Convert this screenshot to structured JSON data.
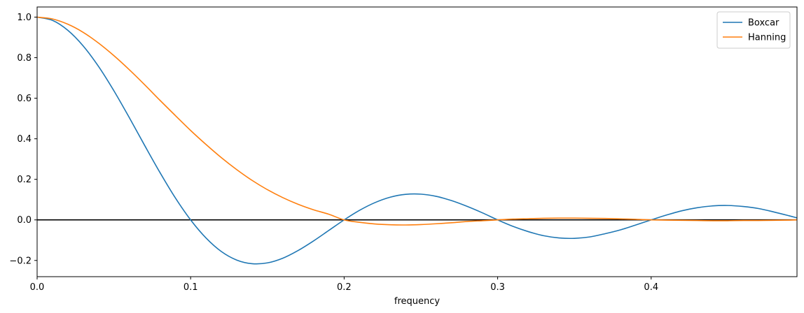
{
  "chart_data": {
    "type": "line",
    "title": "",
    "xlabel": "frequency",
    "ylabel": "",
    "xlim": [
      0,
      0.495
    ],
    "ylim": [
      -0.28,
      1.05
    ],
    "x_ticks": [
      0.0,
      0.1,
      0.2,
      0.3,
      0.4
    ],
    "x_tick_labels": [
      "0.0",
      "0.1",
      "0.2",
      "0.3",
      "0.4"
    ],
    "y_ticks": [
      -0.2,
      0.0,
      0.2,
      0.4,
      0.6,
      0.8,
      1.0
    ],
    "y_tick_labels": [
      "−0.2",
      "0.0",
      "0.2",
      "0.4",
      "0.6",
      "0.8",
      "1.0"
    ],
    "grid": false,
    "legend_position": "top-right",
    "reference_lines": [
      {
        "axis": "y",
        "value": 0,
        "color": "#000000"
      }
    ],
    "x": [
      0,
      0.01,
      0.02,
      0.03,
      0.04,
      0.05,
      0.06,
      0.07,
      0.08,
      0.09,
      0.1,
      0.11,
      0.12,
      0.13,
      0.14,
      0.15,
      0.16,
      0.17,
      0.18,
      0.19,
      0.2,
      0.21,
      0.22,
      0.23,
      0.24,
      0.25,
      0.26,
      0.27,
      0.28,
      0.29,
      0.3,
      0.31,
      0.32,
      0.33,
      0.34,
      0.35,
      0.36,
      0.37,
      0.38,
      0.39,
      0.4,
      0.41,
      0.42,
      0.43,
      0.44,
      0.45,
      0.46,
      0.47,
      0.48,
      0.49,
      0.495
    ],
    "series": [
      {
        "name": "Boxcar",
        "color": "#1f77b4",
        "values": [
          1.0,
          0.984,
          0.935,
          0.858,
          0.757,
          0.637,
          0.505,
          0.368,
          0.234,
          0.109,
          0.0,
          -0.089,
          -0.156,
          -0.198,
          -0.216,
          -0.212,
          -0.189,
          -0.151,
          -0.104,
          -0.052,
          0.0,
          0.047,
          0.085,
          0.112,
          0.126,
          0.127,
          0.116,
          0.095,
          0.067,
          0.035,
          0.0,
          -0.032,
          -0.058,
          -0.078,
          -0.089,
          -0.091,
          -0.084,
          -0.068,
          -0.049,
          -0.025,
          0.0,
          0.024,
          0.045,
          0.06,
          0.069,
          0.071,
          0.066,
          0.056,
          0.039,
          0.02,
          0.01
        ]
      },
      {
        "name": "Hanning",
        "color": "#ff7f0e",
        "values": [
          1.0,
          0.991,
          0.965,
          0.925,
          0.872,
          0.81,
          0.741,
          0.667,
          0.59,
          0.515,
          0.441,
          0.372,
          0.307,
          0.248,
          0.195,
          0.149,
          0.11,
          0.077,
          0.05,
          0.028,
          0.0,
          -0.012,
          -0.02,
          -0.024,
          -0.025,
          -0.023,
          -0.019,
          -0.014,
          -0.008,
          -0.004,
          0.0,
          0.004,
          0.006,
          0.008,
          0.009,
          0.009,
          0.008,
          0.007,
          0.005,
          0.003,
          0.0,
          -0.001,
          -0.002,
          -0.003,
          -0.004,
          -0.004,
          -0.003,
          -0.003,
          -0.002,
          -0.001,
          0.0
        ]
      }
    ]
  }
}
